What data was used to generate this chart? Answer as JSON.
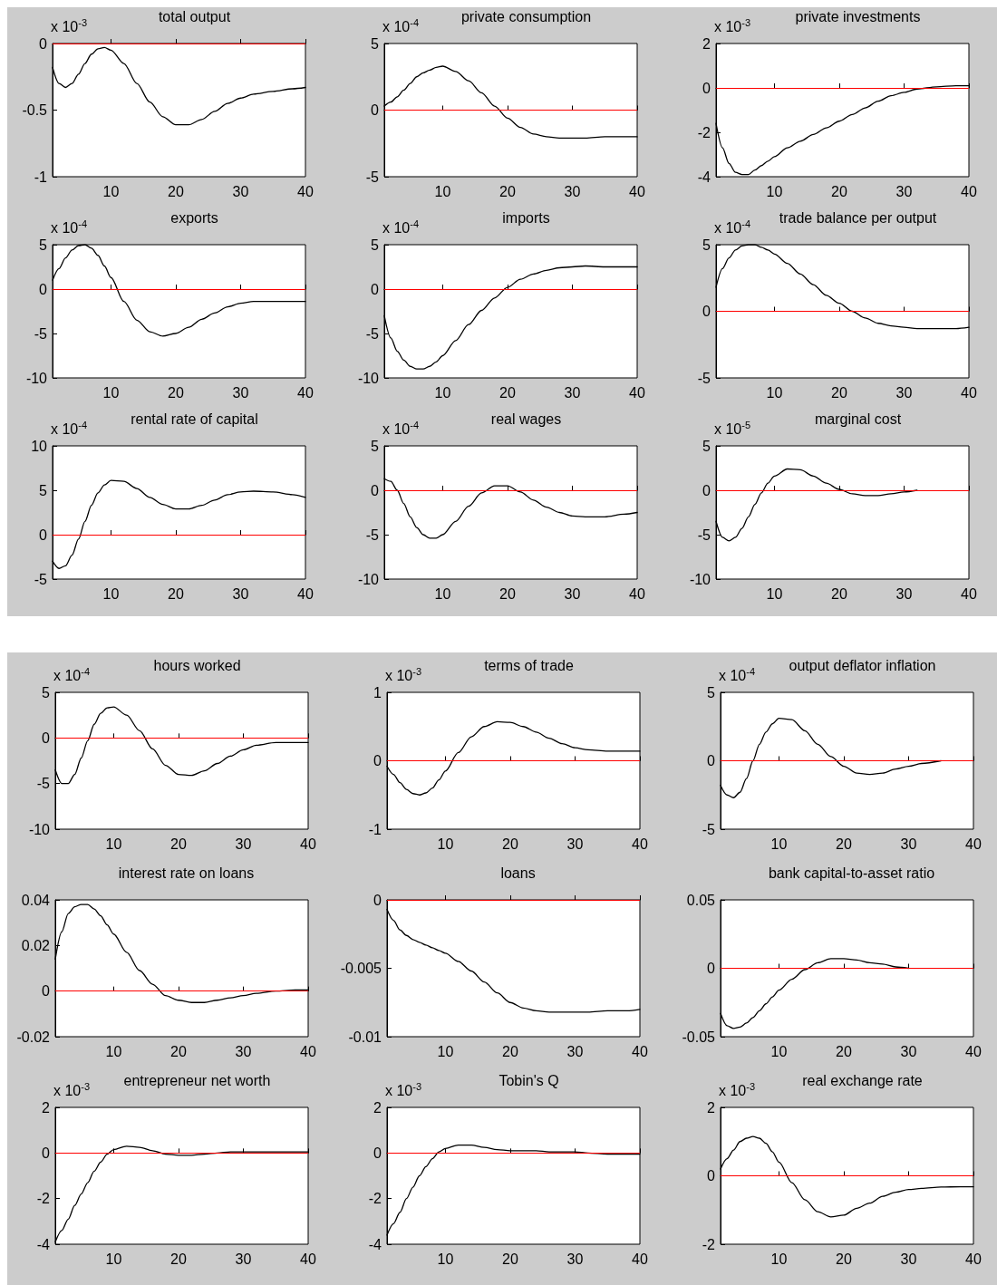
{
  "chart_data": [
    {
      "type": "line",
      "title": "total output",
      "annotations": [
        "x 10$^{-3}$"
      ],
      "x": [
        1,
        2,
        3,
        4,
        5,
        6,
        7,
        8,
        9,
        10,
        12,
        14,
        16,
        18,
        20,
        22,
        24,
        26,
        28,
        30,
        32,
        35,
        38,
        40
      ],
      "xlim": [
        1,
        40
      ],
      "xticks": [
        10,
        20,
        30,
        40
      ],
      "ylim": [
        -1,
        0
      ],
      "yticks": [
        -1,
        -0.5,
        0
      ],
      "grid": false,
      "marker": "none",
      "line_style": "solid",
      "ref_lines": [
        {
          "axis": "y",
          "value": 0,
          "color": "#ff0000"
        }
      ],
      "series": [
        {
          "color": "#000000",
          "values": [
            -0.18,
            -0.3,
            -0.33,
            -0.3,
            -0.23,
            -0.15,
            -0.08,
            -0.04,
            -0.03,
            -0.05,
            -0.15,
            -0.3,
            -0.44,
            -0.55,
            -0.61,
            -0.61,
            -0.57,
            -0.51,
            -0.45,
            -0.41,
            -0.38,
            -0.36,
            -0.34,
            -0.33
          ]
        }
      ]
    },
    {
      "type": "line",
      "title": "private consumption",
      "annotations": [
        "x 10$^{-4}$"
      ],
      "x": [
        1,
        2,
        3,
        4,
        5,
        6,
        7,
        8,
        9,
        10,
        12,
        14,
        16,
        18,
        20,
        22,
        24,
        26,
        28,
        30,
        32,
        35,
        38,
        40
      ],
      "xlim": [
        1,
        40
      ],
      "xticks": [
        10,
        20,
        30,
        40
      ],
      "ylim": [
        -5,
        5
      ],
      "yticks": [
        -5,
        0,
        5
      ],
      "grid": false,
      "marker": "none",
      "line_style": "solid",
      "ref_lines": [
        {
          "axis": "y",
          "value": 0,
          "color": "#ff0000"
        }
      ],
      "series": [
        {
          "color": "#000000",
          "values": [
            0.3,
            0.6,
            1.0,
            1.5,
            2.0,
            2.5,
            2.8,
            3.0,
            3.2,
            3.3,
            2.9,
            2.2,
            1.3,
            0.3,
            -0.6,
            -1.3,
            -1.8,
            -2.0,
            -2.1,
            -2.1,
            -2.1,
            -2.0,
            -2.0,
            -2.0
          ]
        }
      ]
    },
    {
      "type": "line",
      "title": "private investments",
      "annotations": [
        "x 10$^{-3}$"
      ],
      "x": [
        1,
        2,
        3,
        4,
        5,
        6,
        7,
        8,
        9,
        10,
        12,
        14,
        16,
        18,
        20,
        22,
        24,
        26,
        28,
        30,
        32,
        35,
        38,
        40
      ],
      "xlim": [
        1,
        40
      ],
      "xticks": [
        10,
        20,
        30,
        40
      ],
      "ylim": [
        -4,
        2
      ],
      "yticks": [
        -4,
        -2,
        0,
        2
      ],
      "grid": false,
      "marker": "none",
      "line_style": "solid",
      "ref_lines": [
        {
          "axis": "y",
          "value": 0,
          "color": "#ff0000"
        }
      ],
      "series": [
        {
          "color": "#000000",
          "values": [
            -1.6,
            -2.7,
            -3.4,
            -3.8,
            -3.9,
            -3.9,
            -3.7,
            -3.5,
            -3.3,
            -3.1,
            -2.7,
            -2.4,
            -2.1,
            -1.8,
            -1.5,
            -1.2,
            -0.9,
            -0.6,
            -0.35,
            -0.2,
            -0.05,
            0.05,
            0.1,
            0.1
          ]
        }
      ]
    },
    {
      "type": "line",
      "title": "exports",
      "annotations": [
        "x 10$^{-4}$"
      ],
      "x": [
        1,
        2,
        3,
        4,
        5,
        6,
        7,
        8,
        9,
        10,
        12,
        14,
        16,
        18,
        20,
        22,
        24,
        26,
        28,
        30,
        32,
        35,
        38,
        40
      ],
      "xlim": [
        1,
        40
      ],
      "xticks": [
        10,
        20,
        30,
        40
      ],
      "ylim": [
        -10,
        5
      ],
      "yticks": [
        -10,
        -5,
        0,
        5
      ],
      "grid": false,
      "marker": "none",
      "line_style": "solid",
      "ref_lines": [
        {
          "axis": "y",
          "value": 0,
          "color": "#ff0000"
        }
      ],
      "series": [
        {
          "color": "#000000",
          "values": [
            1.0,
            2.3,
            3.5,
            4.4,
            4.9,
            5.0,
            4.6,
            3.8,
            2.6,
            1.3,
            -1.4,
            -3.5,
            -4.8,
            -5.3,
            -5.0,
            -4.3,
            -3.4,
            -2.7,
            -2.0,
            -1.6,
            -1.4,
            -1.4,
            -1.4,
            -1.4
          ]
        }
      ]
    },
    {
      "type": "line",
      "title": "imports",
      "annotations": [
        "x 10$^{-4}$"
      ],
      "x": [
        1,
        2,
        3,
        4,
        5,
        6,
        7,
        8,
        9,
        10,
        12,
        14,
        16,
        18,
        20,
        22,
        24,
        26,
        28,
        30,
        32,
        35,
        38,
        40
      ],
      "xlim": [
        1,
        40
      ],
      "xticks": [
        10,
        20,
        30,
        40
      ],
      "ylim": [
        -10,
        5
      ],
      "yticks": [
        -10,
        -5,
        0,
        5
      ],
      "grid": false,
      "marker": "none",
      "line_style": "solid",
      "ref_lines": [
        {
          "axis": "y",
          "value": 0,
          "color": "#ff0000"
        }
      ],
      "series": [
        {
          "color": "#000000",
          "values": [
            -3.0,
            -5.5,
            -7.0,
            -8.0,
            -8.7,
            -9.0,
            -9.0,
            -8.7,
            -8.2,
            -7.5,
            -5.8,
            -4.0,
            -2.4,
            -1.0,
            0.2,
            1.1,
            1.7,
            2.1,
            2.4,
            2.5,
            2.6,
            2.5,
            2.5,
            2.5
          ]
        }
      ]
    },
    {
      "type": "line",
      "title": "trade balance per output",
      "annotations": [
        "x 10$^{-4}$"
      ],
      "x": [
        1,
        2,
        3,
        4,
        5,
        6,
        7,
        8,
        9,
        10,
        12,
        14,
        16,
        18,
        20,
        22,
        24,
        26,
        28,
        30,
        32,
        35,
        38,
        40
      ],
      "xlim": [
        1,
        40
      ],
      "xticks": [
        10,
        20,
        30,
        40
      ],
      "ylim": [
        -5,
        5
      ],
      "yticks": [
        -5,
        0,
        5
      ],
      "grid": false,
      "marker": "none",
      "line_style": "solid",
      "ref_lines": [
        {
          "axis": "y",
          "value": 0,
          "color": "#ff0000"
        }
      ],
      "series": [
        {
          "color": "#000000",
          "values": [
            1.8,
            3.2,
            4.0,
            4.6,
            4.9,
            5.0,
            5.0,
            4.8,
            4.6,
            4.3,
            3.6,
            2.8,
            2.0,
            1.2,
            0.6,
            0.0,
            -0.5,
            -0.9,
            -1.1,
            -1.2,
            -1.3,
            -1.3,
            -1.3,
            -1.2
          ]
        }
      ]
    },
    {
      "type": "line",
      "title": "rental rate of capital",
      "annotations": [
        "x 10$^{-4}$"
      ],
      "x": [
        1,
        2,
        3,
        4,
        5,
        6,
        7,
        8,
        9,
        10,
        12,
        14,
        16,
        18,
        20,
        22,
        24,
        26,
        28,
        30,
        32,
        35,
        38,
        40
      ],
      "xlim": [
        1,
        40
      ],
      "xticks": [
        10,
        20,
        30,
        40
      ],
      "ylim": [
        -5,
        10
      ],
      "yticks": [
        -5,
        0,
        5,
        10
      ],
      "grid": false,
      "marker": "none",
      "line_style": "solid",
      "ref_lines": [
        {
          "axis": "y",
          "value": 0,
          "color": "#ff0000"
        }
      ],
      "series": [
        {
          "color": "#000000",
          "values": [
            -3.0,
            -3.8,
            -3.5,
            -2.3,
            -0.5,
            1.5,
            3.3,
            4.7,
            5.6,
            6.1,
            6.0,
            5.2,
            4.2,
            3.4,
            2.9,
            2.9,
            3.3,
            3.9,
            4.5,
            4.8,
            4.9,
            4.8,
            4.5,
            4.2
          ]
        }
      ]
    },
    {
      "type": "line",
      "title": "real wages",
      "annotations": [
        "x 10$^{-4}$"
      ],
      "x": [
        1,
        2,
        3,
        4,
        5,
        6,
        7,
        8,
        9,
        10,
        12,
        14,
        16,
        18,
        20,
        22,
        24,
        26,
        28,
        30,
        32,
        35,
        38,
        40
      ],
      "xlim": [
        1,
        40
      ],
      "xticks": [
        10,
        20,
        30,
        40
      ],
      "ylim": [
        -10,
        5
      ],
      "yticks": [
        -10,
        -5,
        0,
        5
      ],
      "grid": false,
      "marker": "none",
      "line_style": "solid",
      "ref_lines": [
        {
          "axis": "y",
          "value": 0,
          "color": "#ff0000"
        }
      ],
      "series": [
        {
          "color": "#000000",
          "values": [
            1.3,
            1.0,
            0.0,
            -1.5,
            -3.0,
            -4.2,
            -5.0,
            -5.4,
            -5.4,
            -5.0,
            -3.5,
            -1.8,
            -0.3,
            0.5,
            0.5,
            -0.2,
            -1.1,
            -1.9,
            -2.5,
            -2.9,
            -3.0,
            -3.0,
            -2.7,
            -2.5
          ]
        }
      ]
    },
    {
      "type": "line",
      "title": "marginal cost",
      "annotations": [
        "x 10$^{-5}$"
      ],
      "x": [
        1,
        2,
        3,
        4,
        5,
        6,
        7,
        8,
        9,
        10,
        12,
        14,
        16,
        18,
        20,
        22,
        24,
        26,
        28,
        30,
        32
      ],
      "xlim": [
        1,
        40
      ],
      "xticks": [
        10,
        20,
        30,
        40
      ],
      "ylim": [
        -10,
        5
      ],
      "yticks": [
        -10,
        -5,
        0,
        5
      ],
      "grid": false,
      "marker": "none",
      "line_style": "solid",
      "ref_lines": [
        {
          "axis": "y",
          "value": 0,
          "color": "#ff0000"
        }
      ],
      "series": [
        {
          "color": "#000000",
          "values": [
            -3.5,
            -5.3,
            -5.7,
            -5.3,
            -4.3,
            -3.0,
            -1.6,
            -0.3,
            0.8,
            1.6,
            2.4,
            2.3,
            1.6,
            0.8,
            0.1,
            -0.4,
            -0.6,
            -0.6,
            -0.4,
            -0.2,
            0
          ]
        }
      ]
    },
    {
      "type": "line",
      "title": "hours worked",
      "annotations": [
        "x 10$^{-4}$"
      ],
      "x": [
        1,
        2,
        3,
        4,
        5,
        6,
        7,
        8,
        9,
        10,
        12,
        14,
        16,
        18,
        20,
        22,
        24,
        26,
        28,
        30,
        32,
        35,
        38,
        40
      ],
      "xlim": [
        1,
        40
      ],
      "xticks": [
        10,
        20,
        30,
        40
      ],
      "ylim": [
        -10,
        5
      ],
      "yticks": [
        -10,
        -5,
        0,
        5
      ],
      "grid": false,
      "marker": "none",
      "line_style": "solid",
      "ref_lines": [
        {
          "axis": "y",
          "value": 0,
          "color": "#ff0000"
        }
      ],
      "series": [
        {
          "color": "#000000",
          "values": [
            -3.5,
            -5.0,
            -5.0,
            -4.0,
            -2.2,
            -0.3,
            1.5,
            2.7,
            3.3,
            3.4,
            2.5,
            0.8,
            -1.2,
            -3.0,
            -4.0,
            -4.1,
            -3.6,
            -2.8,
            -2.0,
            -1.3,
            -0.8,
            -0.5,
            -0.5,
            -0.5
          ]
        }
      ]
    },
    {
      "type": "line",
      "title": "terms of trade",
      "annotations": [
        "x 10$^{-3}$"
      ],
      "x": [
        1,
        2,
        3,
        4,
        5,
        6,
        7,
        8,
        9,
        10,
        12,
        14,
        16,
        18,
        20,
        22,
        24,
        26,
        28,
        30,
        32,
        35,
        38,
        40
      ],
      "xlim": [
        1,
        40
      ],
      "xticks": [
        10,
        20,
        30,
        40
      ],
      "ylim": [
        -1,
        1
      ],
      "yticks": [
        -1,
        0,
        1
      ],
      "grid": false,
      "marker": "none",
      "line_style": "solid",
      "ref_lines": [
        {
          "axis": "y",
          "value": 0,
          "color": "#ff0000"
        }
      ],
      "series": [
        {
          "color": "#000000",
          "values": [
            -0.08,
            -0.2,
            -0.32,
            -0.42,
            -0.48,
            -0.5,
            -0.47,
            -0.4,
            -0.28,
            -0.15,
            0.12,
            0.35,
            0.5,
            0.57,
            0.56,
            0.5,
            0.42,
            0.33,
            0.25,
            0.19,
            0.16,
            0.14,
            0.14,
            0.14
          ]
        }
      ]
    },
    {
      "type": "line",
      "title": "output deflator inflation",
      "annotations": [
        "x 10$^{-4}$"
      ],
      "x": [
        1,
        2,
        3,
        4,
        5,
        6,
        7,
        8,
        9,
        10,
        12,
        14,
        16,
        18,
        20,
        22,
        24,
        26,
        28,
        30,
        32,
        35
      ],
      "xlim": [
        1,
        40
      ],
      "xticks": [
        10,
        20,
        30,
        40
      ],
      "ylim": [
        -5,
        5
      ],
      "yticks": [
        -5,
        0,
        5
      ],
      "grid": false,
      "marker": "none",
      "line_style": "solid",
      "ref_lines": [
        {
          "axis": "y",
          "value": 0,
          "color": "#ff0000"
        }
      ],
      "series": [
        {
          "color": "#000000",
          "values": [
            -1.8,
            -2.5,
            -2.7,
            -2.3,
            -1.3,
            0.0,
            1.2,
            2.1,
            2.7,
            3.1,
            3.0,
            2.2,
            1.2,
            0.3,
            -0.4,
            -0.9,
            -1.0,
            -0.9,
            -0.6,
            -0.4,
            -0.2,
            0
          ]
        }
      ]
    },
    {
      "type": "line",
      "title": "interest rate on loans",
      "x": [
        1,
        2,
        3,
        4,
        5,
        6,
        7,
        8,
        9,
        10,
        12,
        14,
        16,
        18,
        20,
        22,
        24,
        26,
        28,
        30,
        32,
        35,
        38,
        40
      ],
      "xlim": [
        1,
        40
      ],
      "xticks": [
        10,
        20,
        30,
        40
      ],
      "ylim": [
        -0.02,
        0.04
      ],
      "yticks": [
        -0.02,
        0,
        0.02,
        0.04
      ],
      "grid": false,
      "marker": "none",
      "line_style": "solid",
      "ref_lines": [
        {
          "axis": "y",
          "value": 0,
          "color": "#ff0000"
        }
      ],
      "series": [
        {
          "color": "#000000",
          "values": [
            0.014,
            0.026,
            0.034,
            0.037,
            0.038,
            0.038,
            0.036,
            0.033,
            0.029,
            0.025,
            0.017,
            0.009,
            0.003,
            -0.002,
            -0.004,
            -0.005,
            -0.005,
            -0.004,
            -0.003,
            -0.002,
            -0.001,
            0,
            0.0005,
            0.0005
          ]
        }
      ]
    },
    {
      "type": "line",
      "title": "loans",
      "x": [
        1,
        2,
        3,
        4,
        5,
        6,
        7,
        8,
        9,
        10,
        12,
        14,
        16,
        18,
        20,
        22,
        24,
        26,
        28,
        30,
        32,
        35,
        38,
        40
      ],
      "xlim": [
        1,
        40
      ],
      "xticks": [
        10,
        20,
        30,
        40
      ],
      "ylim": [
        -0.01,
        0
      ],
      "yticks": [
        -0.01,
        -0.005,
        0
      ],
      "grid": false,
      "marker": "none",
      "line_style": "solid",
      "ref_lines": [
        {
          "axis": "y",
          "value": 0,
          "color": "#ff0000"
        }
      ],
      "series": [
        {
          "color": "#000000",
          "values": [
            -0.0007,
            -0.0015,
            -0.0022,
            -0.0026,
            -0.0029,
            -0.0031,
            -0.0033,
            -0.0035,
            -0.0037,
            -0.0039,
            -0.0045,
            -0.0052,
            -0.006,
            -0.0068,
            -0.0075,
            -0.0079,
            -0.0081,
            -0.0082,
            -0.0082,
            -0.0082,
            -0.0082,
            -0.0081,
            -0.0081,
            -0.008
          ]
        }
      ]
    },
    {
      "type": "line",
      "title": "bank capital-to-asset ratio",
      "x": [
        1,
        2,
        3,
        4,
        5,
        6,
        7,
        8,
        9,
        10,
        12,
        14,
        16,
        18,
        20,
        22,
        24,
        26,
        28,
        30
      ],
      "xlim": [
        1,
        40
      ],
      "xticks": [
        10,
        20,
        30,
        40
      ],
      "ylim": [
        -0.05,
        0.05
      ],
      "yticks": [
        -0.05,
        0,
        0.05
      ],
      "grid": false,
      "marker": "none",
      "line_style": "solid",
      "ref_lines": [
        {
          "axis": "y",
          "value": 0,
          "color": "#ff0000"
        }
      ],
      "series": [
        {
          "color": "#000000",
          "values": [
            -0.033,
            -0.042,
            -0.044,
            -0.043,
            -0.04,
            -0.036,
            -0.031,
            -0.026,
            -0.021,
            -0.016,
            -0.008,
            -0.001,
            0.004,
            0.007,
            0.007,
            0.006,
            0.004,
            0.003,
            0.001,
            0
          ]
        }
      ]
    },
    {
      "type": "line",
      "title": "entrepreneur net worth",
      "annotations": [
        "x 10$^{-3}$"
      ],
      "x": [
        1,
        2,
        3,
        4,
        5,
        6,
        7,
        8,
        9,
        10,
        12,
        14,
        16,
        18,
        20,
        22,
        24,
        26,
        28,
        30,
        32,
        35,
        38,
        40
      ],
      "xlim": [
        1,
        40
      ],
      "xticks": [
        10,
        20,
        30,
        40
      ],
      "ylim": [
        -4,
        2
      ],
      "yticks": [
        -4,
        -2,
        0,
        2
      ],
      "grid": false,
      "marker": "none",
      "line_style": "solid",
      "ref_lines": [
        {
          "axis": "y",
          "value": 0,
          "color": "#ff0000"
        }
      ],
      "series": [
        {
          "color": "#000000",
          "values": [
            -3.9,
            -3.4,
            -2.9,
            -2.3,
            -1.8,
            -1.3,
            -0.8,
            -0.4,
            -0.05,
            0.15,
            0.3,
            0.25,
            0.1,
            -0.05,
            -0.1,
            -0.1,
            -0.05,
            0,
            0.05,
            0.05,
            0.05,
            0.05,
            0.05,
            0.05
          ]
        }
      ]
    },
    {
      "type": "line",
      "title": "Tobin's Q",
      "annotations": [
        "x 10$^{-3}$"
      ],
      "x": [
        1,
        2,
        3,
        4,
        5,
        6,
        7,
        8,
        9,
        10,
        12,
        14,
        16,
        18,
        20,
        22,
        24,
        26,
        28,
        30,
        32,
        35,
        38,
        40
      ],
      "xlim": [
        1,
        40
      ],
      "xticks": [
        10,
        20,
        30,
        40
      ],
      "ylim": [
        -4,
        2
      ],
      "yticks": [
        -4,
        -2,
        0,
        2
      ],
      "grid": false,
      "marker": "none",
      "line_style": "solid",
      "ref_lines": [
        {
          "axis": "y",
          "value": 0,
          "color": "#ff0000"
        }
      ],
      "series": [
        {
          "color": "#000000",
          "values": [
            -3.6,
            -3.1,
            -2.6,
            -2.0,
            -1.5,
            -1.0,
            -0.6,
            -0.25,
            0.05,
            0.2,
            0.35,
            0.35,
            0.25,
            0.15,
            0.1,
            0.1,
            0.1,
            0.05,
            0.05,
            0.05,
            0,
            -0.05,
            -0.05,
            -0.05
          ]
        }
      ]
    },
    {
      "type": "line",
      "title": "real exchange rate",
      "annotations": [
        "x 10$^{-3}$"
      ],
      "x": [
        1,
        2,
        3,
        4,
        5,
        6,
        7,
        8,
        9,
        10,
        12,
        14,
        16,
        18,
        20,
        22,
        24,
        26,
        28,
        30,
        32,
        35,
        38,
        40
      ],
      "xlim": [
        1,
        40
      ],
      "xticks": [
        10,
        20,
        30,
        40
      ],
      "ylim": [
        -2,
        2
      ],
      "yticks": [
        -2,
        0,
        2
      ],
      "grid": false,
      "marker": "none",
      "line_style": "solid",
      "ref_lines": [
        {
          "axis": "y",
          "value": 0,
          "color": "#ff0000"
        }
      ],
      "series": [
        {
          "color": "#000000",
          "values": [
            0.2,
            0.5,
            0.75,
            1.0,
            1.1,
            1.15,
            1.1,
            0.95,
            0.7,
            0.4,
            -0.2,
            -0.7,
            -1.05,
            -1.2,
            -1.15,
            -0.95,
            -0.8,
            -0.6,
            -0.48,
            -0.4,
            -0.37,
            -0.33,
            -0.32,
            -0.32
          ]
        }
      ]
    }
  ]
}
